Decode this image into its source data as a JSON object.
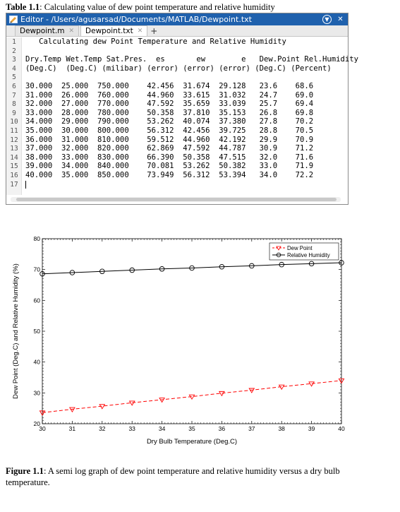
{
  "table_caption": {
    "label": "Table 1.1",
    "text": ": Calculating value of dew point temperature and relative humidity"
  },
  "editor": {
    "title": "Editor - /Users/agusarsad/Documents/MATLAB/Dewpoint.txt",
    "tabs": [
      {
        "label": "Dewpoint.m",
        "active": false
      },
      {
        "label": "Dewpoint.txt",
        "active": true
      }
    ],
    "lines": [
      "   Calculating dew Point Temperature and Relative Humidity",
      "",
      "Dry.Temp Wet.Temp Sat.Pres.  es       ew        e   Dew.Point Rel.Humidity",
      "(Deg.C)  (Deg.C) (milibar) (error) (error) (error) (Deg.C) (Percent)",
      "",
      "30.000  25.000  750.000    42.456  31.674  29.128   23.6    68.6",
      "31.000  26.000  760.000    44.960  33.615  31.032   24.7    69.0",
      "32.000  27.000  770.000    47.592  35.659  33.039   25.7    69.4",
      "33.000  28.000  780.000    50.358  37.810  35.153   26.8    69.8",
      "34.000  29.000  790.000    53.262  40.074  37.380   27.8    70.2",
      "35.000  30.000  800.000    56.312  42.456  39.725   28.8    70.5",
      "36.000  31.000  810.000    59.512  44.960  42.192   29.9    70.9",
      "37.000  32.000  820.000    62.869  47.592  44.787   30.9    71.2",
      "38.000  33.000  830.000    66.390  50.358  47.515   32.0    71.6",
      "39.000  34.000  840.000    70.081  53.262  50.382   33.0    71.9",
      "40.000  35.000  850.000    73.949  56.312  53.394   34.0    72.2",
      ""
    ],
    "line_numbers": [
      "1",
      "2",
      "3",
      "4",
      "5",
      "6",
      "7",
      "8",
      "9",
      "10",
      "11",
      "12",
      "13",
      "14",
      "15",
      "16",
      "17"
    ]
  },
  "chart_data": {
    "type": "line",
    "title": "",
    "xlabel": "Dry Bulb Temperature (Deg.C)",
    "ylabel": "Dew Point (Deg.C) and Relative Humidity (%)",
    "xlim": [
      30,
      40
    ],
    "ylim": [
      20,
      80
    ],
    "x": [
      30,
      31,
      32,
      33,
      34,
      35,
      36,
      37,
      38,
      39,
      40
    ],
    "x_ticks": [
      "30",
      "31",
      "32",
      "33",
      "34",
      "35",
      "36",
      "37",
      "38",
      "39",
      "40"
    ],
    "y_ticks": [
      "20",
      "30",
      "40",
      "50",
      "60",
      "70",
      "80"
    ],
    "grid": false,
    "legend_position": "top-right",
    "series": [
      {
        "name": "Dew Point",
        "color": "#ff0000",
        "line_style": "dashed",
        "marker": "triangle-down",
        "values": [
          23.6,
          24.7,
          25.7,
          26.8,
          27.8,
          28.8,
          29.9,
          30.9,
          32.0,
          33.0,
          34.0
        ]
      },
      {
        "name": "Relative Humidity",
        "color": "#000000",
        "line_style": "solid",
        "marker": "circle",
        "values": [
          68.6,
          69.0,
          69.4,
          69.8,
          70.2,
          70.5,
          70.9,
          71.2,
          71.6,
          71.9,
          72.2
        ]
      }
    ]
  },
  "figure_caption": {
    "label": "Figure 1.1",
    "text": ": A semi log graph of dew point temperature and relative humidity versus a dry bulb temperature."
  },
  "icons": {
    "editor": "matlab-editor-icon",
    "options": "options-circle-icon",
    "close": "close-icon",
    "tab_close": "tab-close-icon",
    "add_tab": "plus-icon"
  }
}
